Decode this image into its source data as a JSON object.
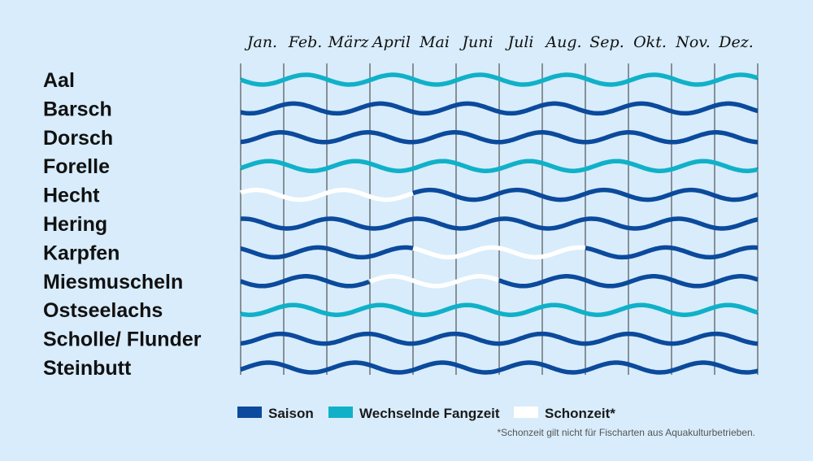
{
  "colors": {
    "background": "#d8ecfb",
    "saison": "#0b4a9c",
    "wechselnd": "#10b1c8",
    "schonzeit": "#ffffff",
    "gridline": "#333333"
  },
  "legend": {
    "saison": "Saison",
    "wechselnd": "Wechselnde Fangzeit",
    "schonzeit": "Schonzeit*"
  },
  "footnote": "*Schonzeit gilt nicht für Fischarten aus Aquakulturbetrieben.",
  "chart_data": {
    "type": "table",
    "months": [
      "Jan.",
      "Feb.",
      "März",
      "April",
      "Mai",
      "Juni",
      "Juli",
      "Aug.",
      "Sep.",
      "Okt.",
      "Nov.",
      "Dez."
    ],
    "status_legend": {
      "S": "Saison",
      "W": "Wechselnde Fangzeit",
      "C": "Schonzeit"
    },
    "rows": [
      {
        "name": "Aal",
        "status": [
          "W",
          "W",
          "W",
          "W",
          "W",
          "W",
          "W",
          "W",
          "W",
          "W",
          "W",
          "W"
        ]
      },
      {
        "name": "Barsch",
        "status": [
          "S",
          "S",
          "S",
          "S",
          "S",
          "S",
          "S",
          "S",
          "S",
          "S",
          "S",
          "S"
        ]
      },
      {
        "name": "Dorsch",
        "status": [
          "S",
          "S",
          "S",
          "S",
          "S",
          "S",
          "S",
          "S",
          "S",
          "S",
          "S",
          "S"
        ]
      },
      {
        "name": "Forelle",
        "status": [
          "W",
          "W",
          "W",
          "W",
          "W",
          "W",
          "W",
          "W",
          "W",
          "W",
          "W",
          "W"
        ]
      },
      {
        "name": "Hecht",
        "status": [
          "C",
          "C",
          "C",
          "C",
          "S",
          "S",
          "S",
          "S",
          "S",
          "S",
          "S",
          "S"
        ]
      },
      {
        "name": "Hering",
        "status": [
          "S",
          "S",
          "S",
          "S",
          "S",
          "S",
          "S",
          "S",
          "S",
          "S",
          "S",
          "S"
        ]
      },
      {
        "name": "Karpfen",
        "status": [
          "S",
          "S",
          "S",
          "S",
          "C",
          "C",
          "C",
          "C",
          "S",
          "S",
          "S",
          "S"
        ]
      },
      {
        "name": "Miesmuscheln",
        "status": [
          "S",
          "S",
          "S",
          "C",
          "C",
          "C",
          "S",
          "S",
          "S",
          "S",
          "S",
          "S"
        ]
      },
      {
        "name": "Ostseelachs",
        "status": [
          "W",
          "W",
          "W",
          "W",
          "W",
          "W",
          "W",
          "W",
          "W",
          "W",
          "W",
          "W"
        ]
      },
      {
        "name": "Scholle/ Flunder",
        "status": [
          "S",
          "S",
          "S",
          "S",
          "S",
          "S",
          "S",
          "S",
          "S",
          "S",
          "S",
          "S"
        ]
      },
      {
        "name": "Steinbutt",
        "status": [
          "S",
          "S",
          "S",
          "S",
          "S",
          "S",
          "S",
          "S",
          "S",
          "S",
          "S",
          "S"
        ]
      }
    ]
  }
}
